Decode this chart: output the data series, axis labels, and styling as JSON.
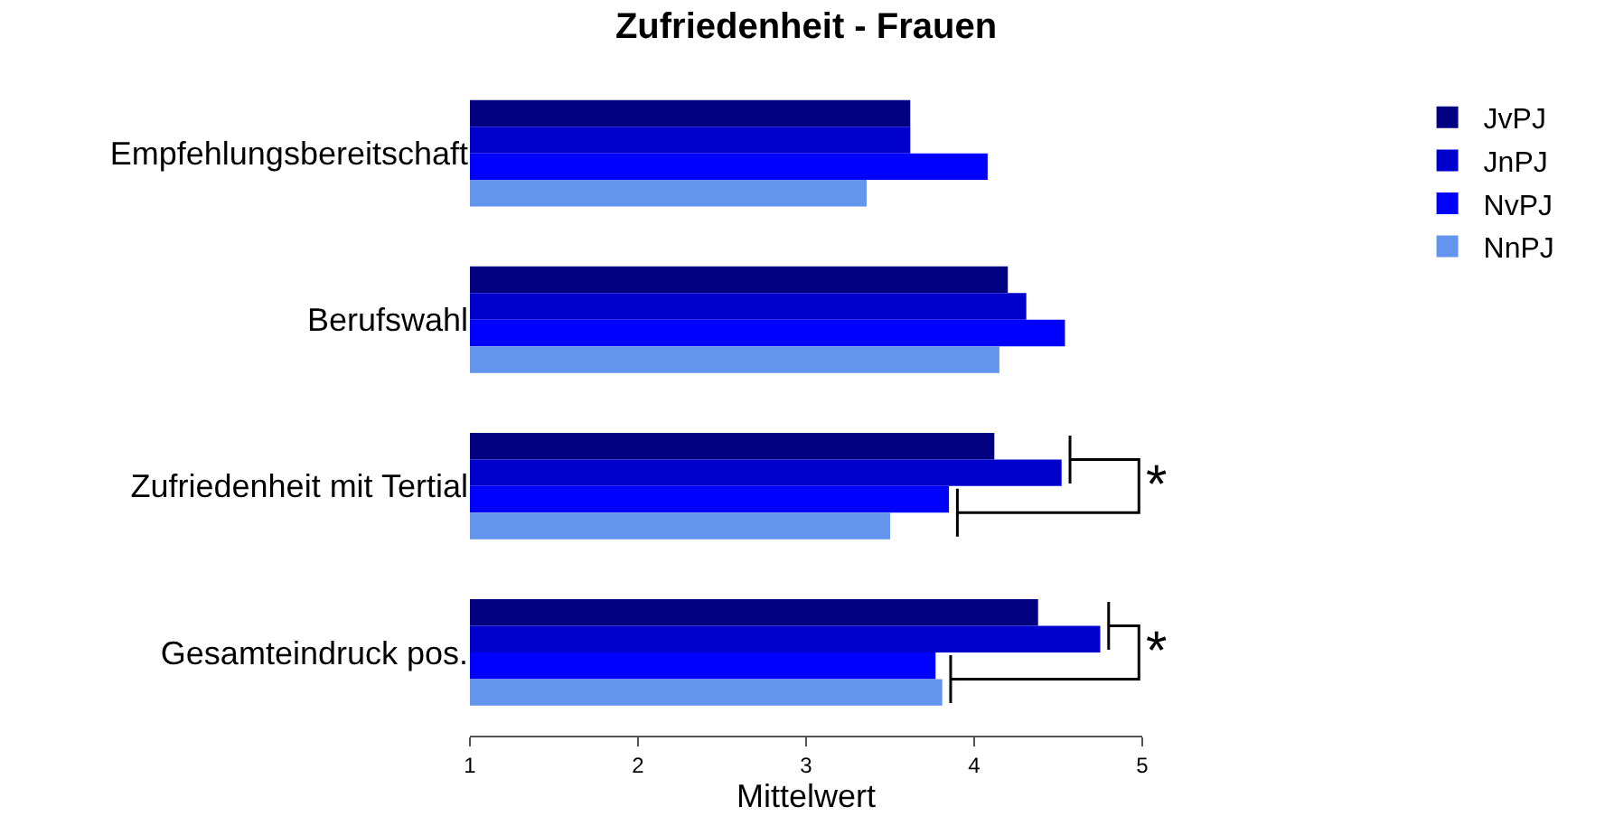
{
  "chart_data": {
    "type": "bar",
    "orientation": "horizontal",
    "title": "Zufriedenheit - Frauen",
    "xlabel": "Mittelwert",
    "categories": [
      "Empfehlungsbereitschaft",
      "Berufswahl",
      "Zufriedenheit mit Tertial",
      "Gesamteindruck pos."
    ],
    "series": [
      {
        "name": "JvPJ",
        "color": "#000080",
        "values": [
          3.62,
          4.2,
          4.12,
          4.38
        ]
      },
      {
        "name": "JnPJ",
        "color": "#0000cd",
        "values": [
          3.62,
          4.31,
          4.52,
          4.75
        ]
      },
      {
        "name": "NvPJ",
        "color": "#0000ff",
        "values": [
          4.08,
          4.54,
          3.85,
          3.77
        ]
      },
      {
        "name": "NnPJ",
        "color": "#6495ed",
        "values": [
          3.36,
          4.15,
          3.5,
          3.81
        ]
      }
    ],
    "xlim": [
      1,
      5
    ],
    "xticks": [
      1,
      2,
      3,
      4,
      5
    ],
    "legend": "top right",
    "annotations": [
      "*",
      "*"
    ]
  }
}
